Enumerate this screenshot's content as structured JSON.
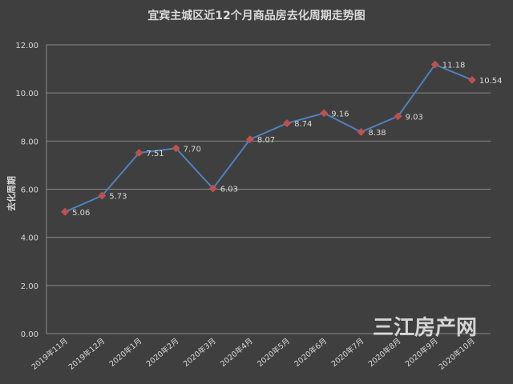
{
  "chart_data": {
    "type": "line",
    "title": "宜宾主城区近12个月商品房去化周期走势图",
    "ylabel": "去化周期",
    "xlabel": "",
    "categories": [
      "2019年11月",
      "2019年12月",
      "2020年1月",
      "2020年2月",
      "2020年3月",
      "2020年4月",
      "2020年5月",
      "2020年6月",
      "2020年7月",
      "2020年8月",
      "2020年9月",
      "2020年10月"
    ],
    "values": [
      5.06,
      5.73,
      7.51,
      7.7,
      6.03,
      8.07,
      8.74,
      9.16,
      8.38,
      9.03,
      11.18,
      10.54
    ],
    "value_labels": [
      "5.06",
      "5.73",
      "7.51",
      "7.70",
      "6.03",
      "8.07",
      "8.74",
      "9.16",
      "8.38",
      "9.03",
      "11.18",
      "10.54"
    ],
    "ylim": [
      0,
      12
    ],
    "yticks": [
      "0.00",
      "2.00",
      "4.00",
      "6.00",
      "8.00",
      "10.00",
      "12.00"
    ],
    "grid": true,
    "legend": "none",
    "colors": {
      "line": "#4f81bd",
      "marker": "#c0504d",
      "grid": "#8a8a8a",
      "background": "#3f3f3f",
      "text": "#d9d9d9"
    }
  },
  "watermark": "三江房产网"
}
